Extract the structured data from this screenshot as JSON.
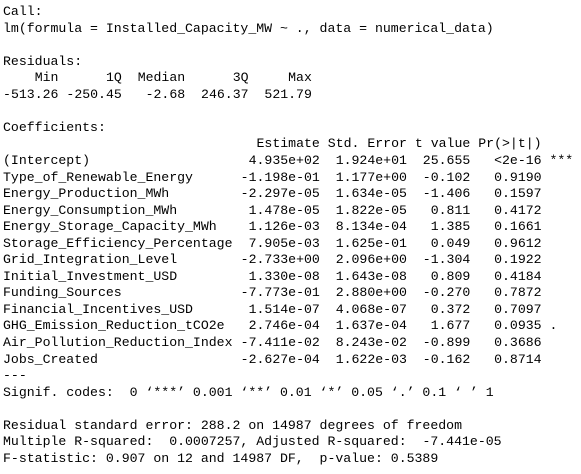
{
  "call": {
    "label": "Call:",
    "formula": "lm(formula = Installed_Capacity_MW ~ ., data = numerical_data)"
  },
  "residuals": {
    "label": "Residuals:",
    "headers": [
      "Min",
      "1Q",
      "Median",
      "3Q",
      "Max"
    ],
    "values": [
      "-513.26",
      "-250.45",
      "-2.68",
      "246.37",
      "521.79"
    ]
  },
  "coefficients": {
    "label": "Coefficients:",
    "headers": [
      "Estimate",
      "Std. Error",
      "t value",
      "Pr(>|t|)"
    ],
    "rows": [
      [
        "(Intercept)",
        "4.935e+02",
        "1.924e+01",
        "25.655",
        "<2e-16",
        "***"
      ],
      [
        "Type_of_Renewable_Energy",
        "-1.198e-01",
        "1.177e+00",
        "-0.102",
        "0.9190"
      ],
      [
        "Energy_Production_MWh",
        "-2.297e-05",
        "1.634e-05",
        "-1.406",
        "0.1597"
      ],
      [
        "Energy_Consumption_MWh",
        "1.478e-05",
        "1.822e-05",
        "0.811",
        "0.4172"
      ],
      [
        "Energy_Storage_Capacity_MWh",
        "1.126e-03",
        "8.134e-04",
        "1.385",
        "0.1661"
      ],
      [
        "Storage_Efficiency_Percentage",
        "7.905e-03",
        "1.625e-01",
        "0.049",
        "0.9612"
      ],
      [
        "Grid_Integration_Level",
        "-2.733e+00",
        "2.096e+00",
        "-1.304",
        "0.1922"
      ],
      [
        "Initial_Investment_USD",
        "1.330e-08",
        "1.643e-08",
        "0.809",
        "0.4184"
      ],
      [
        "Funding_Sources",
        "-7.773e-01",
        "2.880e+00",
        "-0.270",
        "0.7872"
      ],
      [
        "Financial_Incentives_USD",
        "1.514e-07",
        "4.068e-07",
        "0.372",
        "0.7097"
      ],
      [
        "GHG_Emission_Reduction_tCO2e",
        "2.746e-04",
        "1.637e-04",
        "1.677",
        "0.0935",
        "."
      ],
      [
        "Air_Pollution_Reduction_Index",
        "-7.411e-02",
        "8.243e-02",
        "-0.899",
        "0.3686"
      ],
      [
        "Jobs_Created",
        "-2.627e-04",
        "1.622e-03",
        "-0.162",
        "0.8714"
      ]
    ],
    "separator": "---",
    "signif": "Signif. codes:  0 ‘***’ 0.001 ‘**’ 0.01 ‘*’ 0.05 ‘.’ 0.1 ‘ ’ 1"
  },
  "summary": [
    "Residual standard error: 288.2 on 14987 degrees of freedom",
    "Multiple R-squared:  0.0007257,\tAdjusted R-squared:  -7.441e-05 ",
    "F-statistic: 0.907 on 12 and 14987 DF,  p-value: 0.5389"
  ]
}
